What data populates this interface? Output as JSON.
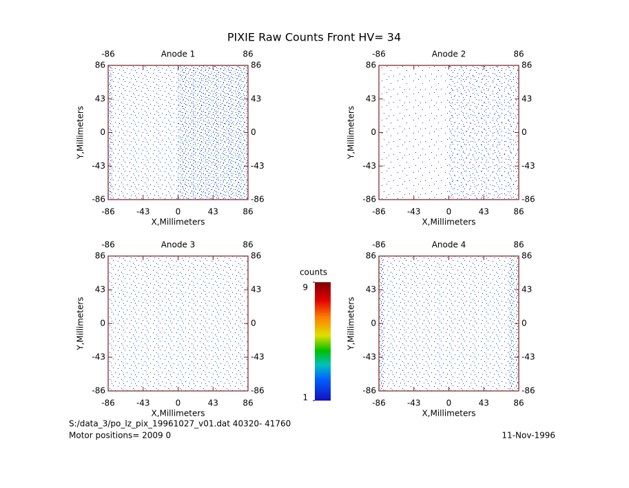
{
  "title": "PIXIE Raw Counts Front HV= 34",
  "chart_data": [
    {
      "type": "image",
      "title": "Anode 1",
      "xlabel": "X,Millimeters",
      "ylabel": "Y,Millimeters",
      "xlim": [
        -86,
        86
      ],
      "ylim": [
        -86,
        86
      ],
      "xticks": [
        -86,
        -43,
        0,
        43,
        86
      ],
      "yticks": [
        -86,
        -43,
        0,
        43,
        86
      ]
    },
    {
      "type": "image",
      "title": "Anode 2",
      "xlabel": "X,Millimeters",
      "ylabel": "Y,Millimeters",
      "xlim": [
        -86,
        86
      ],
      "ylim": [
        -86,
        86
      ],
      "xticks": [
        -86,
        -43,
        0,
        43,
        86
      ],
      "yticks": [
        -86,
        -43,
        0,
        43,
        86
      ]
    },
    {
      "type": "image",
      "title": "Anode 3",
      "xlabel": "X,Millimeters",
      "ylabel": "Y,Millimeters",
      "xlim": [
        -86,
        86
      ],
      "ylim": [
        -86,
        86
      ],
      "xticks": [
        -86,
        -43,
        0,
        43,
        86
      ],
      "yticks": [
        -86,
        -43,
        0,
        43,
        86
      ]
    },
    {
      "type": "image",
      "title": "Anode 4",
      "xlabel": "X,Millimeters",
      "ylabel": "Y,Millimeters",
      "xlim": [
        -86,
        86
      ],
      "ylim": [
        -86,
        86
      ],
      "xticks": [
        -86,
        -43,
        0,
        43,
        86
      ],
      "yticks": [
        -86,
        -43,
        0,
        43,
        86
      ]
    }
  ],
  "colorbar": {
    "label": "counts",
    "ylim": [
      1,
      9
    ],
    "ticks": [
      1,
      9
    ]
  },
  "footer": {
    "file": "S:/data_3/po_lz_pix_19961027_v01.dat   40320- 41760",
    "motor": "Motor positions= 2009 0",
    "date": "11-Nov-1996"
  }
}
